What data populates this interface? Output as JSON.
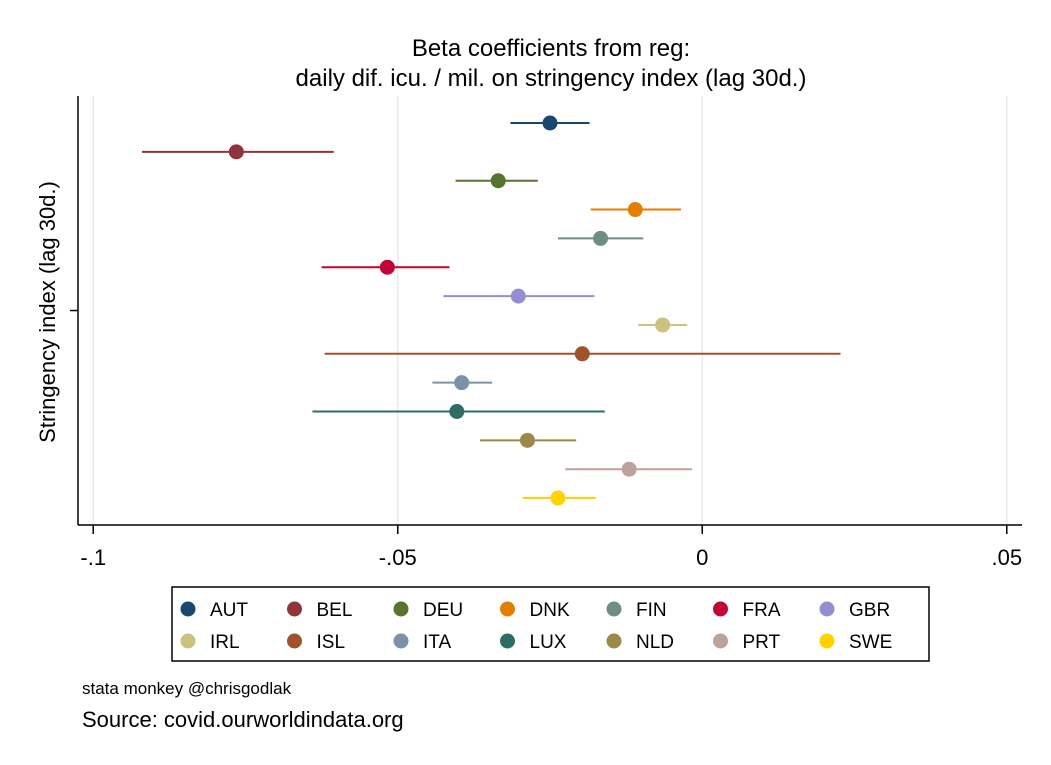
{
  "chart_data": {
    "type": "scatter",
    "title_lines": [
      "Beta coefficients from reg:",
      "daily dif. icu. / mil. on stringency index (lag 30d.)"
    ],
    "ylabel": "Stringency index (lag 30d.)",
    "xlim": [
      -0.1025,
      0.0525
    ],
    "xticks": [
      {
        "value": -0.1,
        "label": "-.1"
      },
      {
        "value": -0.05,
        "label": "-.05"
      },
      {
        "value": 0,
        "label": "0"
      },
      {
        "value": 0.05,
        "label": ".05"
      }
    ],
    "grid": true,
    "legend_position": "bottom",
    "series": [
      {
        "name": "AUT",
        "color": "#1a476f",
        "estimate": -0.025,
        "ci": [
          -0.0315,
          -0.0185
        ]
      },
      {
        "name": "BEL",
        "color": "#90353b",
        "estimate": -0.0765,
        "ci": [
          -0.092,
          -0.0605
        ]
      },
      {
        "name": "DEU",
        "color": "#55752f",
        "estimate": -0.0335,
        "ci": [
          -0.0405,
          -0.027
        ]
      },
      {
        "name": "DNK",
        "color": "#e37e00",
        "estimate": -0.011,
        "ci": [
          -0.0183,
          -0.0035
        ]
      },
      {
        "name": "FIN",
        "color": "#6e8e84",
        "estimate": -0.0167,
        "ci": [
          -0.0237,
          -0.0097
        ]
      },
      {
        "name": "FRA",
        "color": "#c10534",
        "estimate": -0.0517,
        "ci": [
          -0.0625,
          -0.0415
        ]
      },
      {
        "name": "GBR",
        "color": "#938dd2",
        "estimate": -0.0302,
        "ci": [
          -0.0425,
          -0.0177
        ]
      },
      {
        "name": "IRL",
        "color": "#cac27e",
        "estimate": -0.0065,
        "ci": [
          -0.0105,
          -0.0025
        ]
      },
      {
        "name": "ISL",
        "color": "#a0522d",
        "estimate": -0.0197,
        "ci": [
          -0.062,
          0.0227
        ]
      },
      {
        "name": "ITA",
        "color": "#7b92a8",
        "estimate": -0.0395,
        "ci": [
          -0.0443,
          -0.0345
        ]
      },
      {
        "name": "LUX",
        "color": "#2d6d66",
        "estimate": -0.0403,
        "ci": [
          -0.064,
          -0.016
        ]
      },
      {
        "name": "NLD",
        "color": "#9c8847",
        "estimate": -0.0287,
        "ci": [
          -0.0365,
          -0.0207
        ]
      },
      {
        "name": "PRT",
        "color": "#bfa19c",
        "estimate": -0.012,
        "ci": [
          -0.0225,
          -0.0017
        ]
      },
      {
        "name": "SWE",
        "color": "#ffd200",
        "estimate": -0.0237,
        "ci": [
          -0.0295,
          -0.0175
        ]
      }
    ]
  },
  "notes": {
    "author": "stata monkey @chrisgodlak",
    "source": "Source: covid.ourworldindata.org"
  }
}
